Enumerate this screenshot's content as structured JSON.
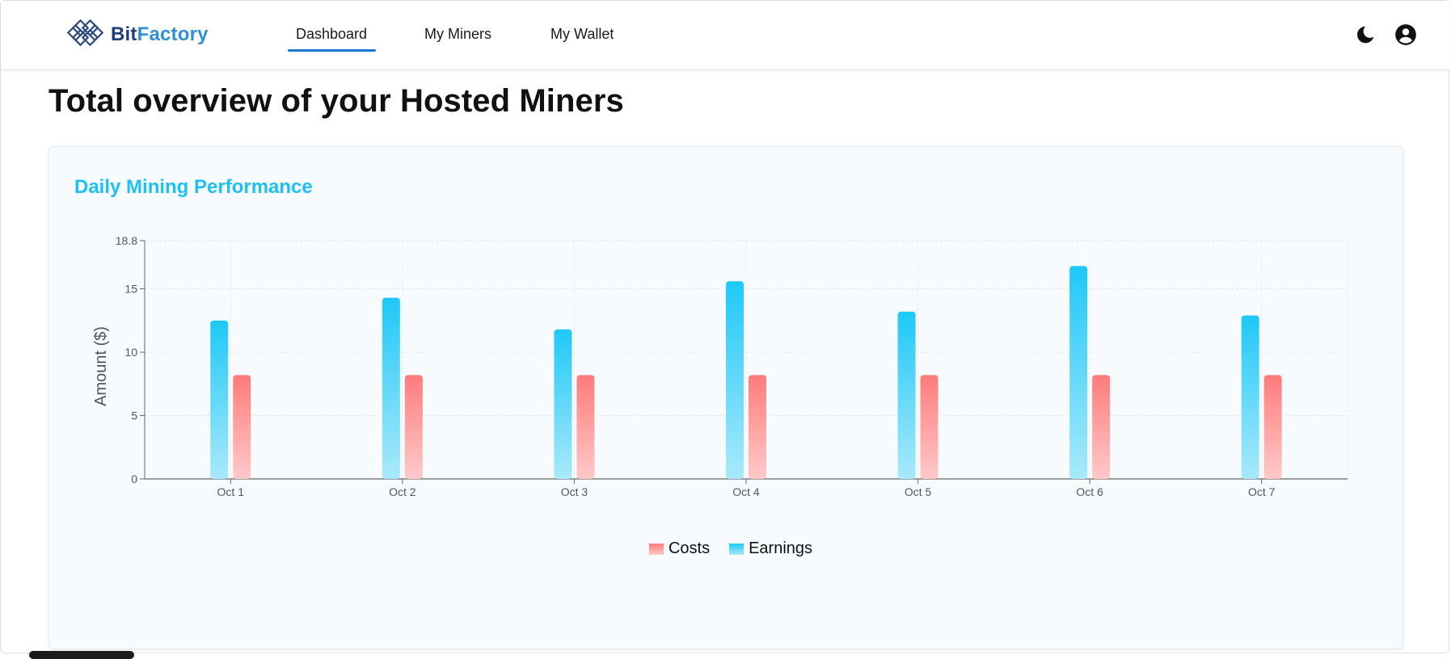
{
  "header": {
    "logo": {
      "text_part1": "Bit",
      "text_part2": "Factory",
      "icon": "bitfactory-knot-logo"
    },
    "nav": [
      {
        "label": "Dashboard",
        "active": true
      },
      {
        "label": "My Miners",
        "active": false
      },
      {
        "label": "My Wallet",
        "active": false
      }
    ],
    "icons": {
      "theme": "moon-icon",
      "account": "account-circle-icon"
    }
  },
  "page": {
    "title": "Total overview of your Hosted Miners"
  },
  "card": {
    "title": "Daily Mining Performance"
  },
  "colors": {
    "accent": "#1ec0f3",
    "nav_active": "#1976d2",
    "earnings_top": "#1ec8f7",
    "earnings_bottom": "#a9e9fb",
    "costs_top": "#ff7b7b",
    "costs_bottom": "#ffc9c9"
  },
  "chart_data": {
    "type": "bar",
    "title": "Daily Mining Performance",
    "xlabel": "",
    "ylabel": "Amount ($)",
    "categories": [
      "Oct 1",
      "Oct 2",
      "Oct 3",
      "Oct 4",
      "Oct 5",
      "Oct 6",
      "Oct 7"
    ],
    "series": [
      {
        "name": "Earnings",
        "values": [
          12.5,
          14.3,
          11.8,
          15.6,
          13.2,
          16.8,
          12.9
        ]
      },
      {
        "name": "Costs",
        "values": [
          8.2,
          8.2,
          8.2,
          8.2,
          8.2,
          8.2,
          8.2
        ]
      }
    ],
    "ylim": [
      0,
      18.8
    ],
    "yticks": [
      "0",
      "5",
      "10",
      "15",
      "18.8"
    ],
    "grid": true,
    "legend": [
      {
        "label": "Costs"
      },
      {
        "label": "Earnings"
      }
    ],
    "legend_position": "bottom-center"
  }
}
